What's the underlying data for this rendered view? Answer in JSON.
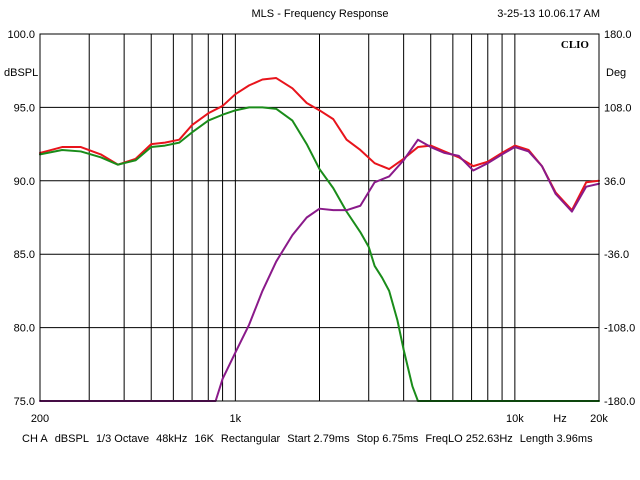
{
  "header": {
    "title": "MLS - Frequency Response",
    "timestamp": "3-25-13 10.06.17 AM",
    "brand": "CLIO"
  },
  "footer": {
    "items": [
      "CH A",
      "dBSPL",
      "1/3 Octave",
      "48kHz",
      "16K",
      "Rectangular",
      "Start 2.79ms",
      "Stop 6.75ms",
      "FreqLO 252.63Hz",
      "Length 3.96ms"
    ]
  },
  "colors": {
    "background": "#ffffff",
    "grid": "#000000",
    "series": [
      "#e8141c",
      "#1a8c1a",
      "#8a1a8a"
    ]
  },
  "chart_data": {
    "type": "line",
    "xlabel": "Hz",
    "ylabel": "dBSPL",
    "y2label": "Deg",
    "xscale": "log",
    "xlim": [
      200,
      20000
    ],
    "ylim": [
      75,
      100
    ],
    "y2lim": [
      -180,
      180
    ],
    "grid": true,
    "x_tick_labels": [
      {
        "value": 200,
        "label": "200"
      },
      {
        "value": 1000,
        "label": "1k"
      },
      {
        "value": 10000,
        "label": "10k"
      },
      {
        "value": 20000,
        "label": "20k"
      }
    ],
    "y_ticks": [
      75,
      80,
      85,
      90,
      95,
      100
    ],
    "y_tick_labels": [
      "75.0",
      "80.0",
      "85.0",
      "90.0",
      "95.0",
      "100.0"
    ],
    "y2_ticks": [
      -180,
      -108,
      -36,
      36,
      108,
      180
    ],
    "y2_tick_labels": [
      "-180.0",
      "-108.0",
      "-36.0",
      "36.0",
      "108.0",
      "180.0"
    ],
    "series": [
      {
        "color": "#e8141c",
        "x": [
          200,
          240,
          280,
          330,
          380,
          440,
          500,
          560,
          630,
          700,
          800,
          900,
          1000,
          1120,
          1250,
          1400,
          1600,
          1800,
          2000,
          2240,
          2500,
          2800,
          3150,
          3550,
          4000,
          4500,
          5000,
          5600,
          6300,
          7100,
          8000,
          9000,
          10000,
          11200,
          12500,
          14000,
          16000,
          18000,
          20000
        ],
        "y": [
          91.9,
          92.3,
          92.3,
          91.8,
          91.1,
          91.5,
          92.5,
          92.6,
          92.8,
          93.8,
          94.6,
          95.1,
          95.9,
          96.5,
          96.9,
          97.0,
          96.3,
          95.3,
          94.8,
          94.2,
          92.8,
          92.1,
          91.2,
          90.8,
          91.5,
          92.3,
          92.4,
          92.0,
          91.6,
          91.0,
          91.3,
          91.9,
          92.4,
          92.1,
          91.0,
          89.2,
          88.0,
          89.9,
          90.0
        ]
      },
      {
        "color": "#1a8c1a",
        "x": [
          200,
          240,
          280,
          330,
          380,
          440,
          500,
          560,
          630,
          700,
          800,
          900,
          1000,
          1120,
          1250,
          1400,
          1600,
          1800,
          2000,
          2240,
          2500,
          2800,
          3000,
          3150,
          3350,
          3550,
          3800,
          4000,
          4300,
          4500,
          20000
        ],
        "y": [
          91.8,
          92.1,
          92.0,
          91.6,
          91.1,
          91.4,
          92.3,
          92.4,
          92.6,
          93.3,
          94.1,
          94.5,
          94.8,
          95.0,
          95.0,
          94.9,
          94.1,
          92.5,
          90.8,
          89.5,
          87.9,
          86.5,
          85.5,
          84.2,
          83.4,
          82.5,
          80.5,
          78.5,
          76.0,
          75.0,
          75.0
        ]
      },
      {
        "color": "#8a1a8a",
        "x": [
          200,
          850,
          900,
          1000,
          1120,
          1250,
          1400,
          1600,
          1800,
          2000,
          2240,
          2500,
          2800,
          3150,
          3550,
          4000,
          4500,
          5000,
          5600,
          6300,
          7100,
          8000,
          9000,
          10000,
          11200,
          12500,
          14000,
          16000,
          18000,
          20000
        ],
        "y": [
          75.0,
          75.0,
          76.5,
          78.3,
          80.2,
          82.5,
          84.5,
          86.3,
          87.5,
          88.1,
          88.0,
          88.0,
          88.3,
          89.9,
          90.3,
          91.4,
          92.8,
          92.3,
          91.9,
          91.7,
          90.7,
          91.2,
          91.8,
          92.3,
          92.0,
          91.0,
          89.1,
          87.9,
          89.6,
          89.8
        ]
      }
    ]
  }
}
